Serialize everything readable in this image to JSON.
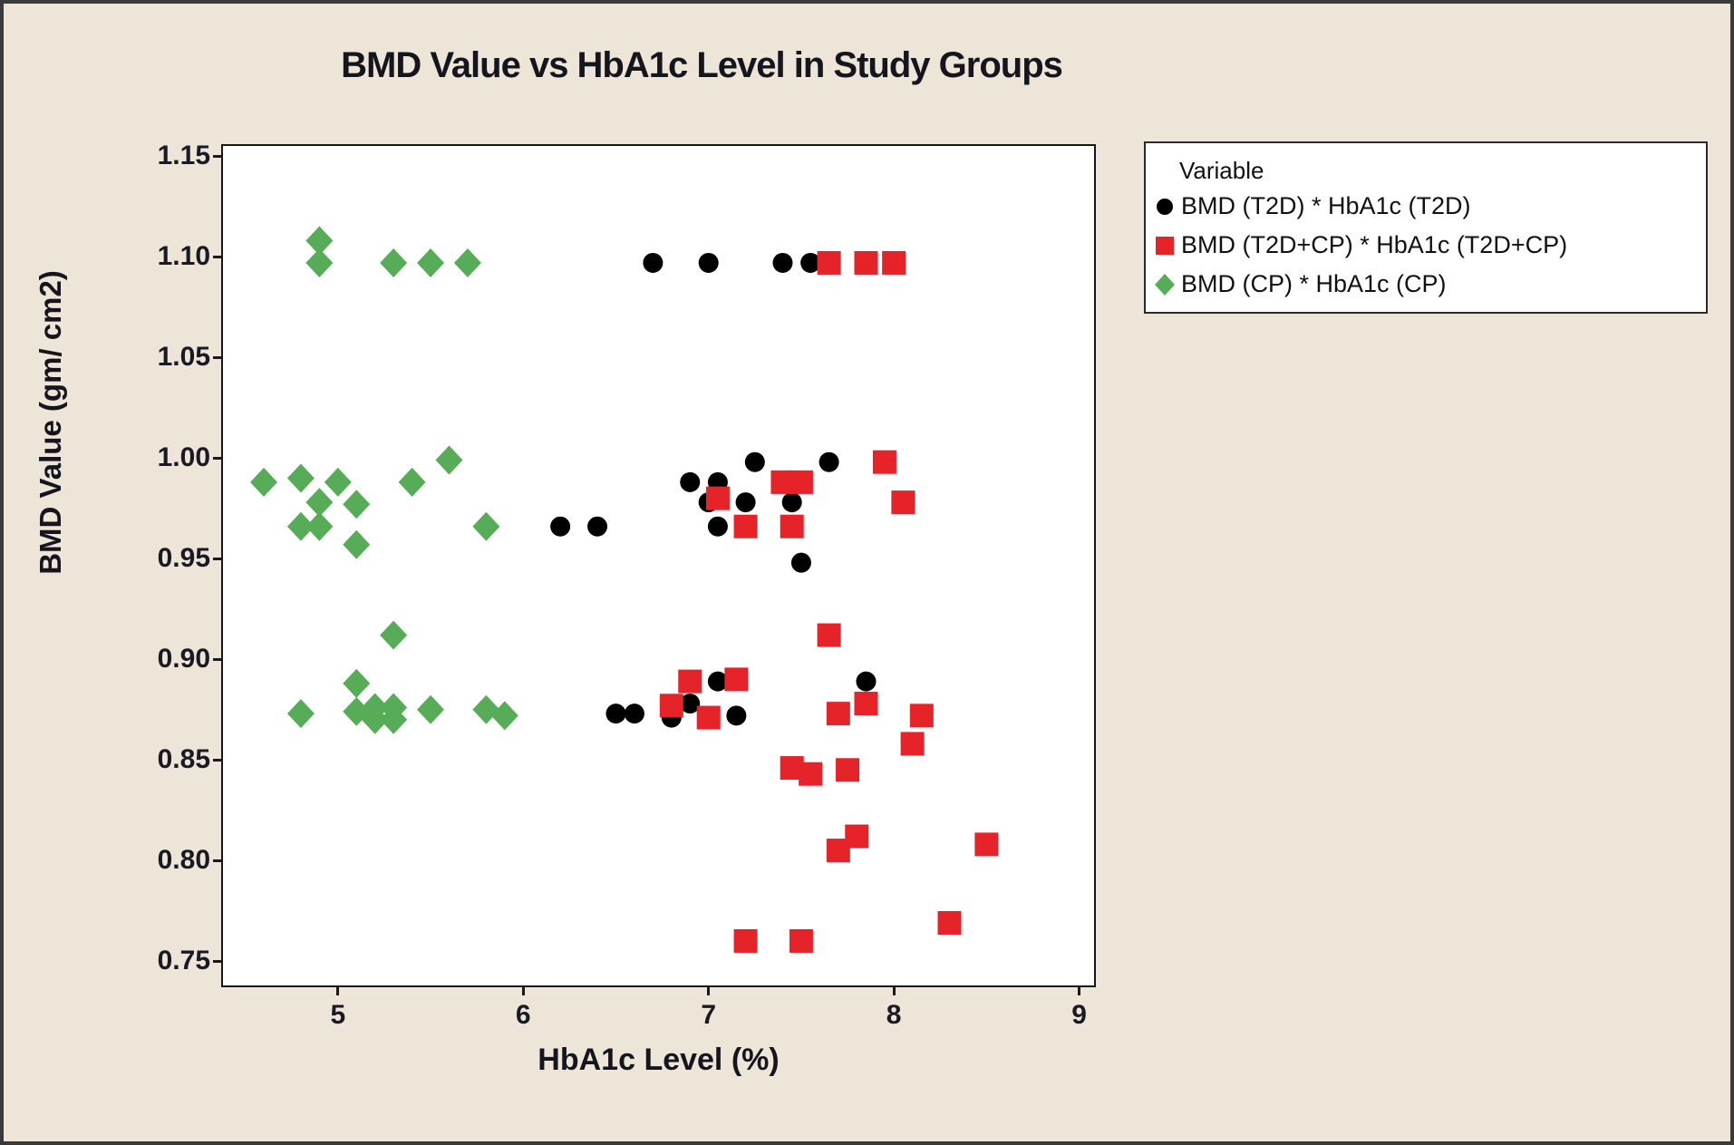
{
  "figure": {
    "background_color": "#EDE5D8",
    "plot_background_color": "#FFFFFF",
    "frame_color": "#3A3A3A"
  },
  "chart_data": {
    "type": "scatter",
    "title": "BMD Value vs HbA1c Level in Study Groups",
    "xlabel": "HbA1c Level (%)",
    "ylabel": "BMD Value (gm/ cm2)",
    "xlim": [
      4.37,
      9.09
    ],
    "ylim": [
      0.737,
      1.156
    ],
    "x_ticks": [
      5,
      6,
      7,
      8,
      9
    ],
    "y_ticks": [
      0.75,
      0.8,
      0.85,
      0.9,
      0.95,
      1.0,
      1.05,
      1.1,
      1.15
    ],
    "grid": "off",
    "legend": {
      "header": "Variable",
      "position": "outside-top-right"
    },
    "series": [
      {
        "name": "BMD (T2D) * HbA1c (T2D)",
        "marker": "circle",
        "color": "#000000",
        "points": [
          [
            6.7,
            1.097
          ],
          [
            7.0,
            1.097
          ],
          [
            7.4,
            1.097
          ],
          [
            7.55,
            1.097
          ],
          [
            6.9,
            0.988
          ],
          [
            7.05,
            0.988
          ],
          [
            7.25,
            0.998
          ],
          [
            7.65,
            0.998
          ],
          [
            7.0,
            0.978
          ],
          [
            7.2,
            0.978
          ],
          [
            7.45,
            0.978
          ],
          [
            6.2,
            0.966
          ],
          [
            6.4,
            0.966
          ],
          [
            7.05,
            0.966
          ],
          [
            7.5,
            0.948
          ],
          [
            6.5,
            0.873
          ],
          [
            6.6,
            0.873
          ],
          [
            6.8,
            0.871
          ],
          [
            6.9,
            0.878
          ],
          [
            7.05,
            0.889
          ],
          [
            7.15,
            0.872
          ],
          [
            7.85,
            0.889
          ]
        ]
      },
      {
        "name": "BMD (T2D+CP) * HbA1c (T2D+CP)",
        "marker": "square",
        "color": "#E62328",
        "points": [
          [
            7.65,
            1.097
          ],
          [
            7.85,
            1.097
          ],
          [
            8.0,
            1.097
          ],
          [
            7.05,
            0.98
          ],
          [
            7.4,
            0.988
          ],
          [
            7.5,
            0.988
          ],
          [
            7.95,
            0.998
          ],
          [
            7.2,
            0.966
          ],
          [
            7.45,
            0.966
          ],
          [
            8.05,
            0.978
          ],
          [
            6.9,
            0.889
          ],
          [
            7.15,
            0.89
          ],
          [
            6.8,
            0.877
          ],
          [
            7.0,
            0.871
          ],
          [
            7.65,
            0.912
          ],
          [
            7.7,
            0.873
          ],
          [
            7.85,
            0.878
          ],
          [
            8.15,
            0.872
          ],
          [
            8.1,
            0.858
          ],
          [
            7.45,
            0.846
          ],
          [
            7.55,
            0.843
          ],
          [
            7.75,
            0.845
          ],
          [
            7.8,
            0.812
          ],
          [
            7.7,
            0.805
          ],
          [
            8.5,
            0.808
          ],
          [
            7.2,
            0.76
          ],
          [
            7.5,
            0.76
          ],
          [
            8.3,
            0.769
          ]
        ]
      },
      {
        "name": "BMD (CP) * HbA1c (CP)",
        "marker": "diamond",
        "color": "#57AC57",
        "points": [
          [
            4.9,
            1.108
          ],
          [
            4.9,
            1.097
          ],
          [
            5.3,
            1.097
          ],
          [
            5.5,
            1.097
          ],
          [
            5.7,
            1.097
          ],
          [
            4.6,
            0.988
          ],
          [
            4.8,
            0.99
          ],
          [
            5.0,
            0.988
          ],
          [
            5.4,
            0.988
          ],
          [
            5.6,
            0.999
          ],
          [
            4.9,
            0.978
          ],
          [
            5.1,
            0.977
          ],
          [
            4.8,
            0.966
          ],
          [
            4.9,
            0.966
          ],
          [
            5.8,
            0.966
          ],
          [
            5.1,
            0.957
          ],
          [
            5.3,
            0.912
          ],
          [
            5.1,
            0.888
          ],
          [
            4.8,
            0.873
          ],
          [
            5.1,
            0.874
          ],
          [
            5.2,
            0.876
          ],
          [
            5.3,
            0.876
          ],
          [
            5.2,
            0.87
          ],
          [
            5.3,
            0.87
          ],
          [
            5.5,
            0.875
          ],
          [
            5.8,
            0.875
          ],
          [
            5.9,
            0.872
          ]
        ]
      }
    ]
  }
}
